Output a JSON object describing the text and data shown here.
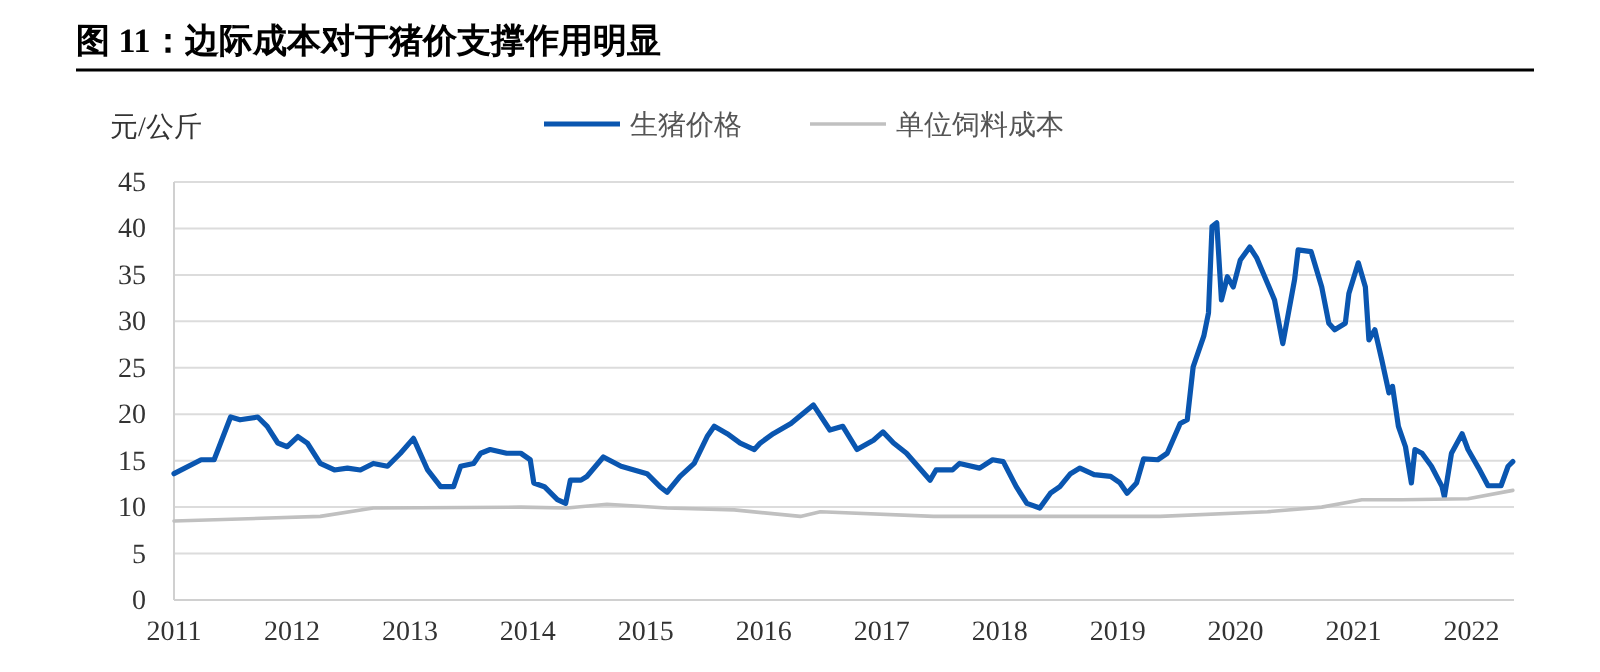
{
  "chart_data": {
    "type": "line",
    "title": "图 11：边际成本对于猪价支撑作用明显",
    "ylabel": "元/公斤",
    "xlim": [
      2011,
      2022.36
    ],
    "xticks": [
      2011,
      2012,
      2013,
      2014,
      2015,
      2016,
      2017,
      2018,
      2019,
      2020,
      2021,
      2022
    ],
    "ylim": [
      0,
      45
    ],
    "yticks": [
      0,
      5,
      10,
      15,
      20,
      25,
      30,
      35,
      40,
      45
    ],
    "grid": "y",
    "legend": "top",
    "marker": "none",
    "line_style": "solid",
    "series": [
      {
        "name": "生猪价格",
        "color": "#0a56b0",
        "x": [
          2011.0,
          2011.23,
          2011.34,
          2011.48,
          2011.56,
          2011.71,
          2011.79,
          2011.88,
          2011.96,
          2012.05,
          2012.13,
          2012.24,
          2012.36,
          2012.47,
          2012.58,
          2012.69,
          2012.81,
          2012.92,
          2013.03,
          2013.15,
          2013.26,
          2013.37,
          2013.43,
          2013.54,
          2013.6,
          2013.68,
          2013.82,
          2013.94,
          2014.02,
          2014.05,
          2014.14,
          2014.25,
          2014.32,
          2014.36,
          2014.45,
          2014.5,
          2014.64,
          2014.79,
          2014.9,
          2015.01,
          2015.12,
          2015.18,
          2015.29,
          2015.41,
          2015.52,
          2015.58,
          2015.69,
          2015.8,
          2015.92,
          2015.97,
          2016.08,
          2016.23,
          2016.42,
          2016.56,
          2016.67,
          2016.79,
          2016.93,
          2017.01,
          2017.1,
          2017.21,
          2017.41,
          2017.46,
          2017.6,
          2017.66,
          2017.83,
          2017.94,
          2018.03,
          2018.14,
          2018.23,
          2018.34,
          2018.43,
          2018.51,
          2018.6,
          2018.68,
          2018.8,
          2018.94,
          2019.02,
          2019.08,
          2019.16,
          2019.22,
          2019.34,
          2019.42,
          2019.53,
          2019.59,
          2019.64,
          2019.73,
          2019.77,
          2019.8,
          2019.84,
          2019.88,
          2019.93,
          2019.98,
          2020.04,
          2020.12,
          2020.18,
          2020.27,
          2020.33,
          2020.4,
          2020.5,
          2020.53,
          2020.64,
          2020.73,
          2020.79,
          2020.84,
          2020.93,
          2020.96,
          2021.04,
          2021.1,
          2021.13,
          2021.18,
          2021.24,
          2021.3,
          2021.33,
          2021.38,
          2021.44,
          2021.49,
          2021.52,
          2021.58,
          2021.66,
          2021.75,
          2021.77,
          2021.83,
          2021.92,
          2021.97,
          2022.06,
          2022.14,
          2022.25,
          2022.31,
          2022.35
        ],
        "values": [
          13.6,
          15.1,
          15.1,
          19.7,
          19.4,
          19.7,
          18.7,
          16.9,
          16.5,
          17.6,
          16.9,
          14.7,
          14.0,
          14.2,
          14.0,
          14.7,
          14.4,
          15.8,
          17.4,
          14.0,
          12.2,
          12.2,
          14.4,
          14.7,
          15.8,
          16.2,
          15.8,
          15.8,
          15.1,
          12.6,
          12.2,
          10.8,
          10.4,
          12.9,
          12.9,
          13.3,
          15.4,
          14.4,
          14.0,
          13.6,
          12.2,
          11.6,
          13.3,
          14.7,
          17.6,
          18.7,
          17.9,
          16.9,
          16.2,
          16.9,
          17.9,
          19.0,
          21.0,
          18.3,
          18.7,
          16.2,
          17.2,
          18.1,
          16.9,
          15.8,
          12.9,
          14.0,
          14.0,
          14.7,
          14.2,
          15.1,
          14.9,
          12.2,
          10.4,
          9.9,
          11.5,
          12.2,
          13.6,
          14.2,
          13.5,
          13.3,
          12.6,
          11.5,
          12.6,
          15.2,
          15.1,
          15.8,
          19.0,
          19.4,
          25.1,
          28.4,
          30.9,
          40.2,
          40.6,
          32.3,
          34.8,
          33.7,
          36.6,
          38.0,
          36.8,
          34.1,
          32.3,
          27.6,
          34.5,
          37.7,
          37.5,
          33.7,
          29.8,
          29.1,
          29.8,
          33.0,
          36.3,
          33.7,
          28.0,
          29.1,
          25.8,
          22.3,
          23.0,
          18.7,
          16.5,
          12.6,
          16.2,
          15.8,
          14.4,
          12.2,
          11.1,
          15.8,
          17.9,
          16.2,
          14.2,
          12.3,
          12.3,
          14.4,
          14.9
        ]
      },
      {
        "name": "单位饲料成本",
        "color": "#c0c0c0",
        "x": [
          2011.0,
          2012.24,
          2012.69,
          2013.94,
          2014.33,
          2014.67,
          2015.18,
          2015.75,
          2016.31,
          2016.48,
          2017.44,
          2018.57,
          2019.36,
          2020.27,
          2020.73,
          2021.07,
          2021.41,
          2021.97,
          2022.35
        ],
        "values": [
          8.5,
          9.0,
          9.9,
          10.0,
          9.9,
          10.3,
          9.9,
          9.7,
          9.0,
          9.5,
          9.0,
          9.0,
          9.0,
          9.5,
          10.0,
          10.8,
          10.8,
          10.9,
          11.8
        ]
      }
    ]
  }
}
